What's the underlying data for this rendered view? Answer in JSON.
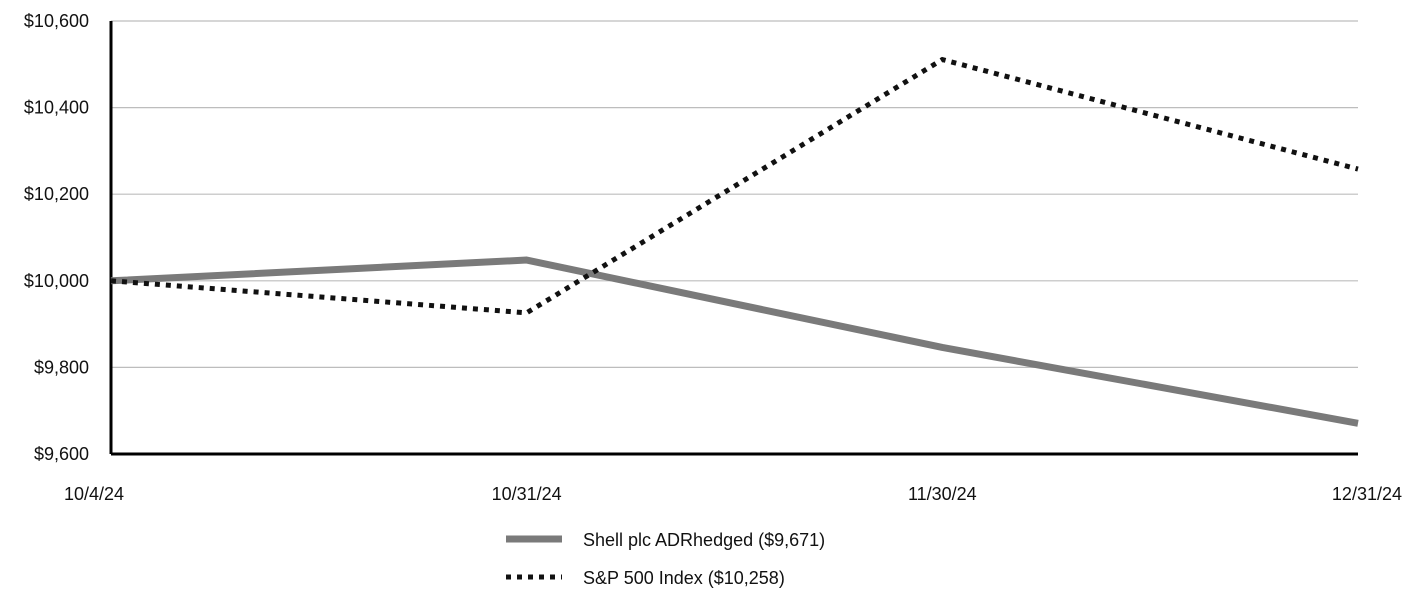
{
  "chart_data": {
    "type": "line",
    "title": "",
    "xlabel": "",
    "ylabel": "",
    "x": [
      "10/4/24",
      "10/31/24",
      "11/30/24",
      "12/31/24"
    ],
    "ylim": [
      9600,
      10600
    ],
    "yticks": [
      9600,
      9800,
      10000,
      10200,
      10400,
      10600
    ],
    "ytick_labels": [
      "$9,600",
      "$9,800",
      "$10,000",
      "$10,200",
      "$10,400",
      "$10,600"
    ],
    "grid": true,
    "legend_position": "bottom-center",
    "series": [
      {
        "name": "Shell plc ADRhedged ($9,671)",
        "values": [
          10000,
          10048,
          9846,
          9671
        ],
        "color": "#7a7a7a",
        "style": "solid"
      },
      {
        "name": "S&P 500 Index ($10,258)",
        "values": [
          10000,
          9926,
          10511,
          10258
        ],
        "color": "#111111",
        "style": "dotted"
      }
    ]
  }
}
